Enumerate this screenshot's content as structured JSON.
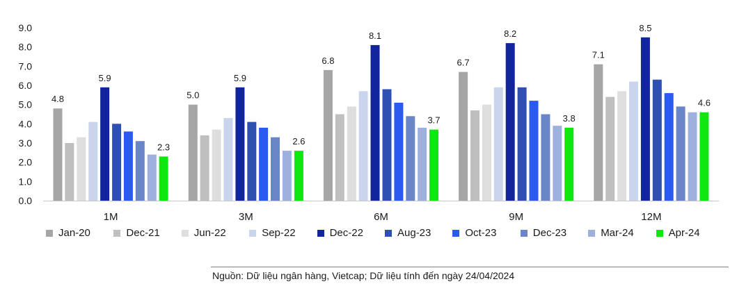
{
  "chart_data": {
    "type": "bar",
    "categories": [
      "1M",
      "3M",
      "6M",
      "9M",
      "12M"
    ],
    "ylim": [
      0,
      9
    ],
    "yticks": [
      "0.0",
      "1.0",
      "2.0",
      "3.0",
      "4.0",
      "5.0",
      "6.0",
      "7.0",
      "8.0",
      "9.0"
    ],
    "legend_position": "bottom",
    "series": [
      {
        "name": "Jan-20",
        "color": "#a6a6a6",
        "values": [
          4.8,
          5.0,
          6.8,
          6.7,
          7.1
        ]
      },
      {
        "name": "Dec-21",
        "color": "#bfbfbf",
        "values": [
          3.0,
          3.4,
          4.5,
          4.7,
          5.4
        ]
      },
      {
        "name": "Jun-22",
        "color": "#dedede",
        "values": [
          3.3,
          3.7,
          4.9,
          5.0,
          5.7
        ]
      },
      {
        "name": "Sep-22",
        "color": "#c9d5ec",
        "values": [
          4.1,
          4.3,
          5.7,
          5.9,
          6.2
        ]
      },
      {
        "name": "Dec-22",
        "color": "#13259a",
        "values": [
          5.9,
          5.9,
          8.1,
          8.2,
          8.5
        ]
      },
      {
        "name": "Aug-23",
        "color": "#2f4fb3",
        "values": [
          4.0,
          4.1,
          5.8,
          5.9,
          6.3
        ]
      },
      {
        "name": "Oct-23",
        "color": "#2a5af0",
        "values": [
          3.6,
          3.8,
          5.1,
          5.2,
          5.6
        ]
      },
      {
        "name": "Dec-23",
        "color": "#6a86c8",
        "values": [
          3.1,
          3.3,
          4.4,
          4.5,
          4.9
        ]
      },
      {
        "name": "Mar-24",
        "color": "#9eb0dd",
        "values": [
          2.4,
          2.6,
          3.8,
          3.9,
          4.6
        ]
      },
      {
        "name": "Apr-24",
        "color": "#0ee810",
        "values": [
          2.3,
          2.6,
          3.7,
          3.8,
          4.6
        ]
      }
    ],
    "data_labels": [
      {
        "category": 0,
        "series": 0,
        "text": "4.8"
      },
      {
        "category": 0,
        "series": 4,
        "text": "5.9"
      },
      {
        "category": 0,
        "series": 9,
        "text": "2.3"
      },
      {
        "category": 1,
        "series": 0,
        "text": "5.0"
      },
      {
        "category": 1,
        "series": 4,
        "text": "5.9"
      },
      {
        "category": 1,
        "series": 9,
        "text": "2.6"
      },
      {
        "category": 2,
        "series": 0,
        "text": "6.8"
      },
      {
        "category": 2,
        "series": 4,
        "text": "8.1"
      },
      {
        "category": 2,
        "series": 9,
        "text": "3.7"
      },
      {
        "category": 3,
        "series": 0,
        "text": "6.7"
      },
      {
        "category": 3,
        "series": 4,
        "text": "8.2"
      },
      {
        "category": 3,
        "series": 9,
        "text": "3.8"
      },
      {
        "category": 4,
        "series": 0,
        "text": "7.1"
      },
      {
        "category": 4,
        "series": 4,
        "text": "8.5"
      },
      {
        "category": 4,
        "series": 9,
        "text": "4.6"
      }
    ]
  },
  "source": "Nguồn: Dữ liệu ngân hàng, Vietcap; Dữ liệu tính đến ngày 24/04/2024"
}
